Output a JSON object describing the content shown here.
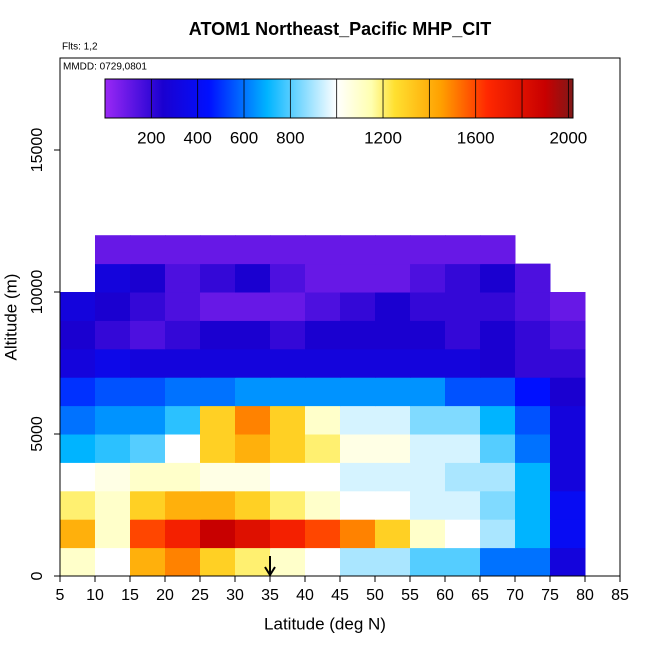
{
  "chart_data": {
    "type": "heatmap",
    "title": "ATOM1 Northeast_Pacific MHP_CIT",
    "annotations": [
      "Flts: 1,2",
      "MMDD: 0729,0801"
    ],
    "x_label": "Latitude (deg N)",
    "y_label": "Altitude (m)",
    "xlim": [
      5,
      85
    ],
    "ylim": [
      0,
      18240
    ],
    "xticks": [
      5,
      10,
      15,
      20,
      25,
      30,
      35,
      40,
      45,
      50,
      55,
      60,
      65,
      70,
      75,
      80,
      85
    ],
    "yticks": [
      0,
      5000,
      10000,
      15000
    ],
    "x_edges": [
      5,
      10,
      15,
      20,
      25,
      30,
      35,
      40,
      45,
      50,
      55,
      60,
      65,
      70,
      75,
      80
    ],
    "y_edges": [
      0,
      1000,
      2000,
      3000,
      4000,
      5000,
      6000,
      7000,
      8000,
      9000,
      10000,
      11000,
      12000
    ],
    "values": [
      [
        1100,
        1000,
        1400,
        1500,
        1300,
        1200,
        1100,
        1000,
        900,
        900,
        800,
        800,
        600,
        600,
        300
      ],
      [
        1400,
        1100,
        1600,
        1700,
        1900,
        1800,
        1700,
        1600,
        1500,
        1300,
        1100,
        1000,
        900,
        700,
        400
      ],
      [
        1200,
        1100,
        1300,
        1400,
        1400,
        1300,
        1200,
        1100,
        1000,
        1000,
        950,
        950,
        850,
        700,
        400
      ],
      [
        1000,
        1050,
        1100,
        1100,
        1050,
        1050,
        1000,
        1000,
        950,
        950,
        950,
        900,
        900,
        700,
        300
      ],
      [
        700,
        750,
        800,
        1000,
        1300,
        1400,
        1300,
        1200,
        1050,
        1050,
        950,
        950,
        800,
        600,
        300
      ],
      [
        600,
        650,
        650,
        750,
        1300,
        1500,
        1300,
        1100,
        950,
        950,
        850,
        850,
        700,
        550,
        300
      ],
      [
        500,
        550,
        550,
        600,
        600,
        650,
        650,
        650,
        650,
        650,
        650,
        550,
        550,
        450,
        250
      ],
      [
        300,
        350,
        300,
        300,
        300,
        300,
        300,
        300,
        300,
        300,
        300,
        300,
        250,
        200,
        200
      ],
      [
        250,
        200,
        150,
        200,
        250,
        250,
        200,
        250,
        250,
        250,
        250,
        200,
        250,
        200,
        150
      ],
      [
        300,
        250,
        200,
        150,
        100,
        100,
        100,
        150,
        200,
        250,
        200,
        200,
        200,
        150,
        100
      ],
      [
        null,
        300,
        250,
        150,
        200,
        250,
        150,
        100,
        100,
        100,
        150,
        200,
        250,
        150,
        null
      ],
      [
        null,
        100,
        100,
        100,
        100,
        100,
        100,
        100,
        100,
        100,
        100,
        100,
        100,
        null,
        null
      ]
    ],
    "marker_x": 35,
    "colorbar": {
      "lim": [
        0,
        2020
      ],
      "ticks": [
        200,
        400,
        600,
        800,
        1200,
        1600,
        2000
      ],
      "breaks": [
        200,
        400,
        600,
        800,
        1000,
        1200,
        1400,
        1600,
        1800,
        2000
      ],
      "stops": [
        {
          "value": 0,
          "color": "#9a28f5"
        },
        {
          "value": 250,
          "color": "#1a00d0"
        },
        {
          "value": 450,
          "color": "#0010ff"
        },
        {
          "value": 700,
          "color": "#00b4ff"
        },
        {
          "value": 1000,
          "color": "#ffffff"
        },
        {
          "value": 1150,
          "color": "#ffffb0"
        },
        {
          "value": 1250,
          "color": "#ffe030"
        },
        {
          "value": 1450,
          "color": "#ffa000"
        },
        {
          "value": 1650,
          "color": "#ff2800"
        },
        {
          "value": 1900,
          "color": "#c80000"
        },
        {
          "value": 2020,
          "color": "#801818"
        }
      ]
    }
  }
}
